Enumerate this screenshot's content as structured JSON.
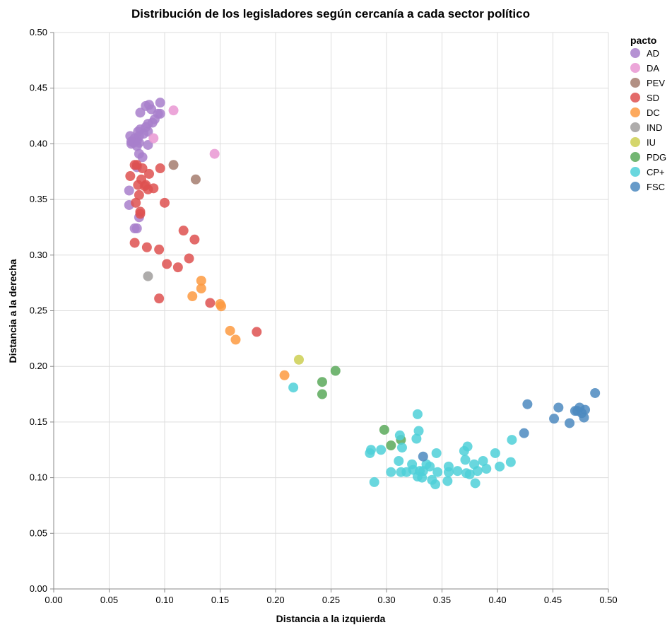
{
  "chart_data": {
    "type": "scatter",
    "title": "Distribución de los legisladores según cercanía a cada sector político",
    "xlabel": "Distancia a la izquierda",
    "ylabel": "Distancia a la derecha",
    "xlim": [
      0,
      0.5
    ],
    "ylim": [
      0,
      0.5
    ],
    "xticks": [
      "0.00",
      "0.05",
      "0.10",
      "0.15",
      "0.20",
      "0.25",
      "0.30",
      "0.35",
      "0.40",
      "0.45",
      "0.50"
    ],
    "yticks": [
      "0.00",
      "0.05",
      "0.10",
      "0.15",
      "0.20",
      "0.25",
      "0.30",
      "0.35",
      "0.40",
      "0.45",
      "0.50"
    ],
    "grid": true,
    "legend_title": "pacto",
    "legend_position": "right",
    "series": [
      {
        "name": "AD",
        "color": "#a87fcb",
        "points": [
          [
            0.096,
            0.437
          ],
          [
            0.086,
            0.435
          ],
          [
            0.083,
            0.434
          ],
          [
            0.088,
            0.431
          ],
          [
            0.078,
            0.428
          ],
          [
            0.094,
            0.427
          ],
          [
            0.096,
            0.427
          ],
          [
            0.091,
            0.422
          ],
          [
            0.089,
            0.419
          ],
          [
            0.085,
            0.418
          ],
          [
            0.083,
            0.415
          ],
          [
            0.078,
            0.413
          ],
          [
            0.076,
            0.411
          ],
          [
            0.085,
            0.411
          ],
          [
            0.081,
            0.409
          ],
          [
            0.077,
            0.407
          ],
          [
            0.069,
            0.407
          ],
          [
            0.073,
            0.405
          ],
          [
            0.075,
            0.403
          ],
          [
            0.07,
            0.402
          ],
          [
            0.072,
            0.401
          ],
          [
            0.077,
            0.401
          ],
          [
            0.07,
            0.4
          ],
          [
            0.085,
            0.399
          ],
          [
            0.075,
            0.398
          ],
          [
            0.077,
            0.391
          ],
          [
            0.08,
            0.388
          ],
          [
            0.075,
            0.379
          ],
          [
            0.068,
            0.358
          ],
          [
            0.068,
            0.345
          ],
          [
            0.077,
            0.334
          ],
          [
            0.073,
            0.324
          ],
          [
            0.075,
            0.324
          ]
        ]
      },
      {
        "name": "DA",
        "color": "#e997d2",
        "points": [
          [
            0.108,
            0.43
          ],
          [
            0.09,
            0.405
          ],
          [
            0.145,
            0.391
          ]
        ]
      },
      {
        "name": "PEV",
        "color": "#a57d6f",
        "points": [
          [
            0.108,
            0.381
          ],
          [
            0.128,
            0.368
          ]
        ]
      },
      {
        "name": "SD",
        "color": "#de5150",
        "points": [
          [
            0.073,
            0.381
          ],
          [
            0.075,
            0.381
          ],
          [
            0.08,
            0.378
          ],
          [
            0.096,
            0.378
          ],
          [
            0.086,
            0.373
          ],
          [
            0.069,
            0.371
          ],
          [
            0.079,
            0.368
          ],
          [
            0.083,
            0.363
          ],
          [
            0.076,
            0.363
          ],
          [
            0.082,
            0.362
          ],
          [
            0.09,
            0.36
          ],
          [
            0.085,
            0.359
          ],
          [
            0.077,
            0.354
          ],
          [
            0.074,
            0.347
          ],
          [
            0.1,
            0.347
          ],
          [
            0.078,
            0.339
          ],
          [
            0.078,
            0.337
          ],
          [
            0.117,
            0.322
          ],
          [
            0.127,
            0.314
          ],
          [
            0.073,
            0.311
          ],
          [
            0.084,
            0.307
          ],
          [
            0.095,
            0.305
          ],
          [
            0.122,
            0.297
          ],
          [
            0.102,
            0.292
          ],
          [
            0.112,
            0.289
          ],
          [
            0.095,
            0.261
          ],
          [
            0.141,
            0.257
          ],
          [
            0.183,
            0.231
          ]
        ]
      },
      {
        "name": "DC",
        "color": "#fd9a41",
        "points": [
          [
            0.133,
            0.277
          ],
          [
            0.133,
            0.27
          ],
          [
            0.125,
            0.263
          ],
          [
            0.15,
            0.256
          ],
          [
            0.151,
            0.254
          ],
          [
            0.159,
            0.232
          ],
          [
            0.164,
            0.224
          ],
          [
            0.208,
            0.192
          ]
        ]
      },
      {
        "name": "IND",
        "color": "#a09d9c",
        "points": [
          [
            0.085,
            0.281
          ]
        ]
      },
      {
        "name": "IU",
        "color": "#cdcf52",
        "points": [
          [
            0.221,
            0.206
          ]
        ]
      },
      {
        "name": "PDG",
        "color": "#5aa95b",
        "points": [
          [
            0.254,
            0.196
          ],
          [
            0.242,
            0.186
          ],
          [
            0.242,
            0.175
          ],
          [
            0.298,
            0.143
          ],
          [
            0.313,
            0.134
          ],
          [
            0.304,
            0.129
          ]
        ]
      },
      {
        "name": "CP+",
        "color": "#4fd0d8",
        "points": [
          [
            0.216,
            0.181
          ],
          [
            0.328,
            0.157
          ],
          [
            0.329,
            0.142
          ],
          [
            0.312,
            0.138
          ],
          [
            0.327,
            0.135
          ],
          [
            0.413,
            0.134
          ],
          [
            0.314,
            0.127
          ],
          [
            0.373,
            0.128
          ],
          [
            0.286,
            0.125
          ],
          [
            0.295,
            0.125
          ],
          [
            0.37,
            0.124
          ],
          [
            0.285,
            0.122
          ],
          [
            0.345,
            0.122
          ],
          [
            0.398,
            0.122
          ],
          [
            0.311,
            0.115
          ],
          [
            0.387,
            0.115
          ],
          [
            0.412,
            0.114
          ],
          [
            0.323,
            0.112
          ],
          [
            0.379,
            0.112
          ],
          [
            0.336,
            0.112
          ],
          [
            0.339,
            0.11
          ],
          [
            0.356,
            0.11
          ],
          [
            0.402,
            0.11
          ],
          [
            0.39,
            0.108
          ],
          [
            0.324,
            0.107
          ],
          [
            0.33,
            0.106
          ],
          [
            0.333,
            0.106
          ],
          [
            0.346,
            0.105
          ],
          [
            0.318,
            0.105
          ],
          [
            0.304,
            0.105
          ],
          [
            0.313,
            0.105
          ],
          [
            0.356,
            0.105
          ],
          [
            0.364,
            0.106
          ],
          [
            0.382,
            0.106
          ],
          [
            0.372,
            0.104
          ],
          [
            0.375,
            0.103
          ],
          [
            0.328,
            0.101
          ],
          [
            0.332,
            0.1
          ],
          [
            0.341,
            0.098
          ],
          [
            0.355,
            0.097
          ],
          [
            0.289,
            0.096
          ],
          [
            0.344,
            0.094
          ],
          [
            0.38,
            0.095
          ],
          [
            0.371,
            0.116
          ]
        ]
      },
      {
        "name": "FSC",
        "color": "#4c8ac0",
        "points": [
          [
            0.488,
            0.176
          ],
          [
            0.427,
            0.166
          ],
          [
            0.474,
            0.163
          ],
          [
            0.455,
            0.163
          ],
          [
            0.479,
            0.161
          ],
          [
            0.47,
            0.16
          ],
          [
            0.472,
            0.16
          ],
          [
            0.476,
            0.158
          ],
          [
            0.478,
            0.154
          ],
          [
            0.451,
            0.153
          ],
          [
            0.465,
            0.149
          ],
          [
            0.424,
            0.14
          ],
          [
            0.333,
            0.119
          ]
        ]
      }
    ]
  }
}
